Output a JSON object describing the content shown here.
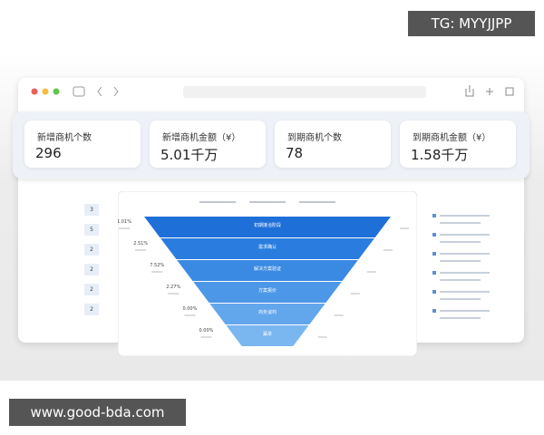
{
  "watermark": {
    "top": "TG: MYYJJPP",
    "bottom": "www.good-bda.com"
  },
  "cards": [
    {
      "label": "新增商机个数",
      "value": "296"
    },
    {
      "label": "新增商机金额（¥）",
      "value": "5.01千万"
    },
    {
      "label": "到期商机个数",
      "value": "78"
    },
    {
      "label": "到期商机金额（¥）",
      "value": "1.58千万"
    }
  ],
  "left_counts": [
    "3",
    "5",
    "2",
    "2",
    "2",
    "2"
  ],
  "funnel": {
    "stages": [
      "初期接洽阶段",
      "需求确认",
      "解决方案验证",
      "方案报价",
      "商务谈判",
      "赢单"
    ],
    "rates": [
      "1.01%",
      "2.51%",
      "7.52%",
      "2.27%",
      "0.00%",
      "0.00%"
    ]
  }
}
